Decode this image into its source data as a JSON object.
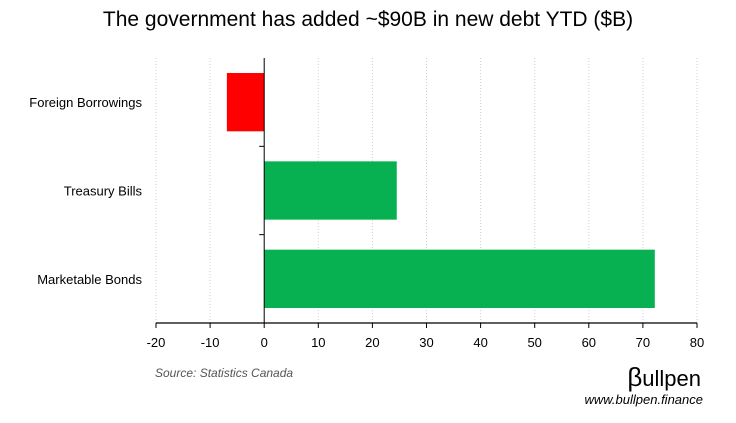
{
  "chart_data": {
    "type": "bar",
    "orientation": "horizontal",
    "title": "The government has added ~$90B in new debt YTD ($B)",
    "categories": [
      "Foreign Borrowings",
      "Treasury Bills",
      "Marketable Bonds"
    ],
    "values": [
      -6.9,
      24.5,
      72.2
    ],
    "colors": [
      "#ff0000",
      "#07b050",
      "#07b050"
    ],
    "xlim": [
      -20,
      80
    ],
    "xticks": [
      "-20",
      "-10",
      "0",
      "10",
      "20",
      "30",
      "40",
      "50",
      "60",
      "70",
      "80"
    ],
    "xlabel": "",
    "ylabel": "",
    "grid": "vertical dotted"
  },
  "footer": {
    "source": "Source: Statistics Canada",
    "logo_text": "ullpen",
    "logo_symbol": "β",
    "url": "www.bullpen.finance"
  }
}
